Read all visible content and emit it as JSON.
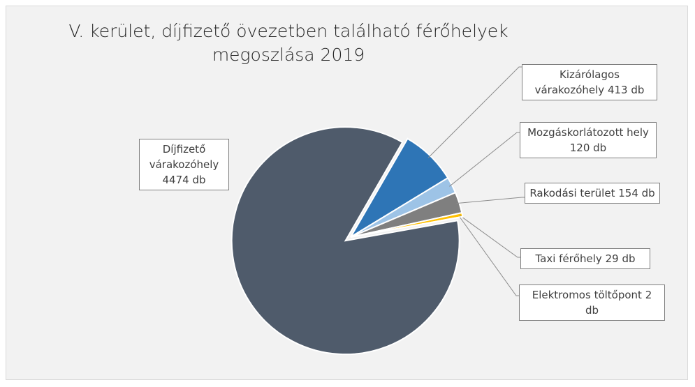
{
  "chart_data": {
    "type": "pie",
    "title": "V. kerület, díjfizető övezetben található férőhelyek megoszlása 2019",
    "categories": [
      "Kizárólagos várakozóhely",
      "Mozgáskorlátozott hely",
      "Rakodási terület",
      "Taxi férőhely",
      "Elektromos töltőpont",
      "Díjfizető várakozóhely"
    ],
    "values": [
      413,
      120,
      154,
      29,
      2,
      4474
    ],
    "value_labels": [
      "413 db",
      "120 db",
      "154 db",
      "29 db",
      "2 db",
      "4474 db"
    ],
    "colors": [
      "#2e75b6",
      "#9dc3e6",
      "#7f7f7f",
      "#ffc000",
      "#5b9bd5",
      "#4f5b6b"
    ]
  }
}
